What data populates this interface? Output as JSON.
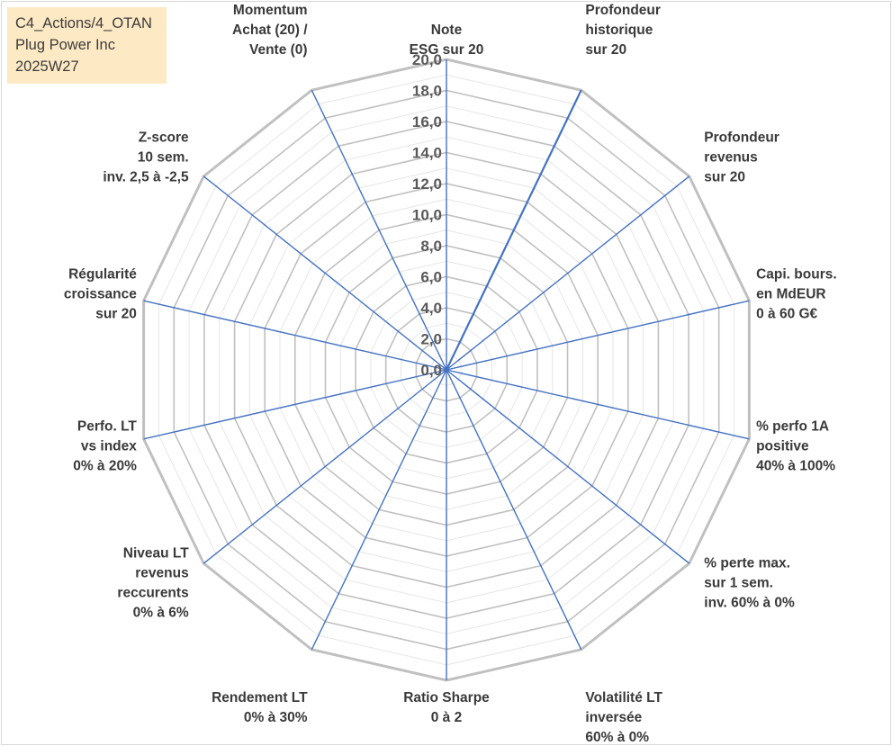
{
  "info": {
    "line1": "C4_Actions/4_OTAN",
    "line2": "Plug Power Inc",
    "line3": "2025W27"
  },
  "chart_data": {
    "type": "radar",
    "title": "",
    "axes": [
      [
        "Note",
        "ESG sur 20"
      ],
      [
        "Profondeur",
        "historique",
        "sur 20"
      ],
      [
        "Profondeur",
        "revenus",
        "sur 20"
      ],
      [
        "Capi. bours.",
        "en MdEUR",
        "0 à 60 G€"
      ],
      [
        "% perfo 1A",
        "positive",
        "40% à 100%"
      ],
      [
        "% perte max.",
        "sur 1 sem.",
        "inv. 60% à 0%"
      ],
      [
        "Volatilité LT",
        "inversée",
        "60% à 0%"
      ],
      [
        "Ratio Sharpe",
        "0 à 2"
      ],
      [
        "Rendement LT",
        "0% à 30%"
      ],
      [
        "Niveau LT",
        "revenus",
        "reccurents",
        "0% à 6%"
      ],
      [
        "Perfo. LT",
        "vs index",
        "0% à 20%"
      ],
      [
        "Régularité",
        "croissance",
        "sur 20"
      ],
      [
        "Z-score",
        "10 sem.",
        "inv. 2,5 à -2,5"
      ],
      [
        "Momentum",
        "Achat (20) /",
        "Vente (0)"
      ]
    ],
    "tick_labels": [
      "0,0",
      "2,0",
      "4,0",
      "6,0",
      "8,0",
      "10,0",
      "12,0",
      "14,0",
      "16,0",
      "18,0",
      "20,0"
    ],
    "ylim": [
      0,
      20
    ],
    "major_step": 2,
    "minor_step": 1,
    "grid": true,
    "series": [
      {
        "values": [
          0,
          20,
          0,
          0,
          0,
          0,
          0,
          0,
          0,
          0,
          0,
          0,
          0,
          0
        ],
        "color": "#4472c4"
      }
    ],
    "spoke_color": "#4472c4",
    "grid_major_color": "#c0c0c0",
    "grid_minor_color": "#e6e6e6"
  }
}
